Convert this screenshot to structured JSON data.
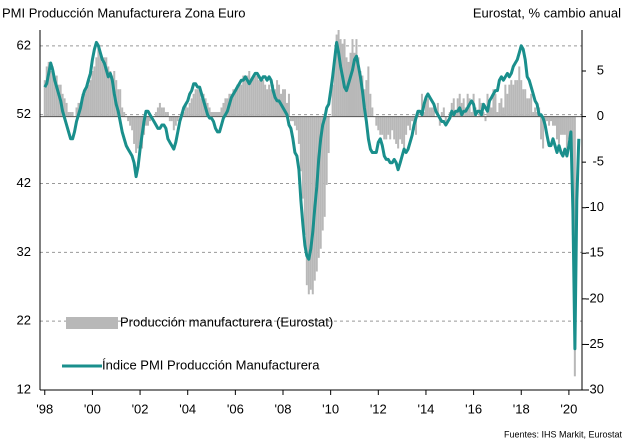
{
  "chart_data": {
    "type": "combo",
    "title": "PMI Producción Manufacturera Zona Euro",
    "y2_label": "Eurostat,  % cambio anual",
    "source": "Fuentes: IHS Markit, Eurostat",
    "xlim": [
      1997.8,
      2020.55
    ],
    "xticks": [
      {
        "value": 1998,
        "label": "'98"
      },
      {
        "value": 2000,
        "label": "'00"
      },
      {
        "value": 2002,
        "label": "'02"
      },
      {
        "value": 2004,
        "label": "'04"
      },
      {
        "value": 2006,
        "label": "'06"
      },
      {
        "value": 2008,
        "label": "'08"
      },
      {
        "value": 2010,
        "label": "'10"
      },
      {
        "value": 2012,
        "label": "'12"
      },
      {
        "value": 2014,
        "label": "'14"
      },
      {
        "value": 2016,
        "label": "'16"
      },
      {
        "value": 2018,
        "label": "'18"
      },
      {
        "value": 2020,
        "label": "'20"
      }
    ],
    "ylim": [
      12,
      64.3
    ],
    "yticks": [
      12,
      22,
      32,
      42,
      52,
      62
    ],
    "y2lim": [
      -30,
      9.5
    ],
    "y2ticks": [
      -30,
      -25,
      -20,
      -15,
      -10,
      -5,
      0,
      5
    ],
    "grid": true,
    "legend": "lower left",
    "x": [
      1998,
      1998.083,
      1998.167,
      1998.25,
      1998.333,
      1998.417,
      1998.5,
      1998.583,
      1998.667,
      1998.75,
      1998.833,
      1998.917,
      1999,
      1999.083,
      1999.167,
      1999.25,
      1999.333,
      1999.417,
      1999.5,
      1999.583,
      1999.667,
      1999.75,
      1999.833,
      1999.917,
      2000,
      2000.083,
      2000.167,
      2000.25,
      2000.333,
      2000.417,
      2000.5,
      2000.583,
      2000.667,
      2000.75,
      2000.833,
      2000.917,
      2001,
      2001.083,
      2001.167,
      2001.25,
      2001.333,
      2001.417,
      2001.5,
      2001.583,
      2001.667,
      2001.75,
      2001.833,
      2001.917,
      2002,
      2002.083,
      2002.167,
      2002.25,
      2002.333,
      2002.417,
      2002.5,
      2002.583,
      2002.667,
      2002.75,
      2002.833,
      2002.917,
      2003,
      2003.083,
      2003.167,
      2003.25,
      2003.333,
      2003.417,
      2003.5,
      2003.583,
      2003.667,
      2003.75,
      2003.833,
      2003.917,
      2004,
      2004.083,
      2004.167,
      2004.25,
      2004.333,
      2004.417,
      2004.5,
      2004.583,
      2004.667,
      2004.75,
      2004.833,
      2004.917,
      2005,
      2005.083,
      2005.167,
      2005.25,
      2005.333,
      2005.417,
      2005.5,
      2005.583,
      2005.667,
      2005.75,
      2005.833,
      2005.917,
      2006,
      2006.083,
      2006.167,
      2006.25,
      2006.333,
      2006.417,
      2006.5,
      2006.583,
      2006.667,
      2006.75,
      2006.833,
      2006.917,
      2007,
      2007.083,
      2007.167,
      2007.25,
      2007.333,
      2007.417,
      2007.5,
      2007.583,
      2007.667,
      2007.75,
      2007.833,
      2007.917,
      2008,
      2008.083,
      2008.167,
      2008.25,
      2008.333,
      2008.417,
      2008.5,
      2008.583,
      2008.667,
      2008.75,
      2008.833,
      2008.917,
      2009,
      2009.083,
      2009.167,
      2009.25,
      2009.333,
      2009.417,
      2009.5,
      2009.583,
      2009.667,
      2009.75,
      2009.833,
      2009.917,
      2010,
      2010.083,
      2010.167,
      2010.25,
      2010.333,
      2010.417,
      2010.5,
      2010.583,
      2010.667,
      2010.75,
      2010.833,
      2010.917,
      2011,
      2011.083,
      2011.167,
      2011.25,
      2011.333,
      2011.417,
      2011.5,
      2011.583,
      2011.667,
      2011.75,
      2011.833,
      2011.917,
      2012,
      2012.083,
      2012.167,
      2012.25,
      2012.333,
      2012.417,
      2012.5,
      2012.583,
      2012.667,
      2012.75,
      2012.833,
      2012.917,
      2013,
      2013.083,
      2013.167,
      2013.25,
      2013.333,
      2013.417,
      2013.5,
      2013.583,
      2013.667,
      2013.75,
      2013.833,
      2013.917,
      2014,
      2014.083,
      2014.167,
      2014.25,
      2014.333,
      2014.417,
      2014.5,
      2014.583,
      2014.667,
      2014.75,
      2014.833,
      2014.917,
      2015,
      2015.083,
      2015.167,
      2015.25,
      2015.333,
      2015.417,
      2015.5,
      2015.583,
      2015.667,
      2015.75,
      2015.833,
      2015.917,
      2016,
      2016.083,
      2016.167,
      2016.25,
      2016.333,
      2016.417,
      2016.5,
      2016.583,
      2016.667,
      2016.75,
      2016.833,
      2016.917,
      2017,
      2017.083,
      2017.167,
      2017.25,
      2017.333,
      2017.417,
      2017.5,
      2017.583,
      2017.667,
      2017.75,
      2017.833,
      2017.917,
      2018,
      2018.083,
      2018.167,
      2018.25,
      2018.333,
      2018.417,
      2018.5,
      2018.583,
      2018.667,
      2018.75,
      2018.833,
      2018.917,
      2019,
      2019.083,
      2019.167,
      2019.25,
      2019.333,
      2019.417,
      2019.5,
      2019.583,
      2019.667,
      2019.75,
      2019.833,
      2019.917,
      2020,
      2020.083,
      2020.167,
      2020.25,
      2020.333,
      2020.417
    ],
    "series": [
      {
        "name": "Producción manufacturera (Eurostat)",
        "type": "bar",
        "axis": "y2",
        "color": "#b8b8b8",
        "values": [
          4.0,
          5.5,
          6.0,
          5.0,
          5.5,
          4.0,
          4.5,
          3.5,
          3.5,
          2.5,
          2.0,
          1.5,
          0.5,
          0.5,
          0.5,
          0.0,
          1.0,
          1.5,
          1.5,
          2.5,
          2.5,
          3.0,
          3.5,
          4.0,
          5.0,
          5.5,
          6.5,
          7.5,
          7.0,
          6.0,
          6.5,
          6.5,
          5.5,
          5.0,
          4.5,
          5.0,
          4.0,
          3.0,
          3.0,
          1.0,
          0.5,
          0.0,
          -0.5,
          -1.0,
          -1.5,
          -3.0,
          -4.0,
          -3.5,
          -3.0,
          -3.5,
          -2.0,
          -1.0,
          -1.0,
          -0.5,
          0.0,
          0.0,
          0.5,
          1.0,
          1.5,
          1.0,
          1.0,
          0.5,
          0.5,
          -0.5,
          -0.5,
          -1.5,
          -1.0,
          -0.5,
          0.0,
          0.5,
          0.5,
          1.5,
          1.0,
          1.5,
          2.0,
          2.5,
          3.0,
          3.0,
          3.0,
          2.0,
          2.5,
          2.0,
          1.5,
          1.0,
          0.5,
          0.5,
          0.5,
          0.5,
          0.5,
          1.0,
          1.5,
          2.0,
          2.0,
          2.5,
          2.5,
          3.0,
          3.0,
          3.5,
          3.5,
          3.5,
          4.5,
          4.0,
          4.5,
          5.0,
          4.0,
          4.5,
          4.5,
          4.5,
          4.0,
          4.0,
          4.0,
          3.5,
          3.0,
          3.5,
          3.0,
          3.5,
          3.0,
          4.0,
          3.5,
          2.5,
          3.0,
          3.0,
          1.5,
          2.5,
          -0.5,
          -0.5,
          -1.0,
          -1.5,
          -3.0,
          -6.0,
          -9.0,
          -13.0,
          -18.5,
          -19.5,
          -19.0,
          -19.5,
          -18.0,
          -17.0,
          -15.5,
          -14.5,
          -12.5,
          -11.0,
          -7.5,
          -4.0,
          0.0,
          3.5,
          6.5,
          9.0,
          9.5,
          8.5,
          8.0,
          8.5,
          6.5,
          6.0,
          7.0,
          8.5,
          7.0,
          8.5,
          6.5,
          5.0,
          4.5,
          3.0,
          4.0,
          5.5,
          2.5,
          1.0,
          0.0,
          -1.0,
          -1.5,
          -2.0,
          -2.0,
          -2.5,
          -2.5,
          -2.0,
          -2.5,
          -1.5,
          -2.5,
          -3.0,
          -3.5,
          -2.5,
          -3.0,
          -3.5,
          -2.0,
          -1.0,
          -1.5,
          -0.5,
          -1.5,
          -2.0,
          0.5,
          0.0,
          2.5,
          0.5,
          2.0,
          2.0,
          1.0,
          1.0,
          1.0,
          0.0,
          1.5,
          -1.0,
          0.5,
          1.0,
          -0.5,
          0.0,
          0.5,
          1.5,
          2.0,
          0.5,
          2.0,
          2.5,
          1.5,
          2.0,
          1.0,
          2.5,
          2.0,
          0.5,
          2.5,
          1.0,
          0.0,
          2.0,
          1.5,
          0.5,
          -0.5,
          2.5,
          1.5,
          1.0,
          3.0,
          2.5,
          0.5,
          1.5,
          2.0,
          1.0,
          3.5,
          2.5,
          3.5,
          4.0,
          3.5,
          4.0,
          4.0,
          5.5,
          4.0,
          3.0,
          3.0,
          2.0,
          2.0,
          2.5,
          0.5,
          1.0,
          0.5,
          1.0,
          -2.5,
          -3.5,
          -1.0,
          -0.5,
          -1.0,
          -0.5,
          -1.0,
          -1.0,
          -2.5,
          -3.0,
          -2.0,
          -2.0,
          -2.0,
          -3.5,
          -2.5,
          -2.0,
          -13.0,
          -28.5,
          null,
          null
        ]
      },
      {
        "name": "Índice PMI Producción Manufacturera",
        "type": "line",
        "color": "#1a8f8c",
        "values": [
          56.0,
          56.5,
          58.0,
          59.5,
          58.5,
          57.0,
          56.0,
          55.0,
          54.0,
          52.5,
          51.5,
          50.5,
          49.5,
          48.5,
          48.5,
          49.5,
          51.0,
          52.0,
          53.0,
          54.5,
          55.5,
          56.0,
          57.0,
          58.0,
          60.0,
          61.5,
          62.5,
          62.0,
          61.0,
          60.0,
          59.5,
          58.5,
          57.5,
          58.0,
          57.0,
          55.0,
          53.5,
          52.5,
          51.0,
          49.5,
          48.5,
          47.5,
          47.0,
          46.5,
          46.0,
          45.0,
          43.0,
          44.5,
          47.0,
          49.0,
          51.0,
          52.5,
          52.5,
          52.0,
          51.5,
          51.0,
          50.5,
          50.0,
          50.0,
          50.5,
          50.5,
          50.0,
          48.5,
          48.0,
          47.5,
          47.0,
          48.0,
          49.5,
          51.0,
          52.0,
          53.0,
          53.5,
          54.0,
          55.0,
          55.5,
          56.5,
          56.5,
          56.0,
          56.0,
          55.0,
          54.0,
          53.0,
          52.0,
          51.5,
          51.5,
          51.0,
          50.0,
          49.5,
          49.5,
          50.5,
          51.5,
          52.0,
          52.5,
          53.5,
          54.5,
          55.0,
          55.5,
          56.0,
          56.5,
          57.0,
          57.0,
          57.5,
          57.0,
          56.5,
          57.0,
          57.5,
          58.0,
          58.0,
          57.5,
          57.0,
          57.5,
          57.5,
          57.0,
          57.5,
          57.0,
          55.5,
          54.5,
          54.0,
          54.0,
          53.5,
          53.0,
          52.5,
          52.0,
          50.5,
          50.0,
          48.5,
          46.5,
          46.0,
          44.0,
          39.5,
          36.0,
          33.0,
          31.5,
          31.0,
          32.5,
          35.0,
          38.5,
          41.5,
          45.5,
          48.5,
          50.5,
          51.5,
          53.0,
          53.5,
          55.5,
          57.5,
          60.0,
          62.5,
          61.0,
          59.0,
          57.5,
          56.0,
          55.5,
          56.5,
          57.5,
          58.5,
          60.0,
          60.5,
          59.0,
          57.5,
          55.5,
          53.0,
          51.0,
          48.5,
          47.0,
          46.5,
          46.5,
          46.5,
          48.0,
          48.5,
          47.5,
          46.0,
          45.5,
          45.5,
          45.0,
          45.0,
          45.5,
          45.0,
          44.0,
          45.0,
          46.0,
          47.0,
          46.5,
          47.0,
          48.0,
          49.0,
          50.5,
          51.5,
          52.5,
          52.5,
          52.0,
          53.5,
          54.5,
          55.0,
          54.5,
          54.0,
          53.5,
          52.5,
          52.0,
          51.5,
          51.0,
          51.0,
          50.5,
          51.0,
          51.5,
          52.5,
          52.0,
          52.5,
          52.5,
          53.0,
          52.0,
          52.5,
          52.5,
          53.0,
          53.5,
          54.0,
          53.5,
          52.0,
          52.5,
          52.5,
          52.0,
          53.5,
          53.0,
          52.5,
          54.0,
          54.5,
          55.0,
          55.5,
          55.5,
          57.0,
          57.5,
          57.0,
          57.5,
          58.0,
          57.5,
          58.0,
          59.0,
          59.5,
          60.0,
          61.0,
          62.0,
          61.5,
          60.0,
          57.5,
          57.0,
          56.0,
          55.0,
          54.0,
          53.5,
          52.0,
          52.0,
          51.5,
          50.5,
          49.0,
          47.5,
          47.5,
          48.5,
          47.5,
          46.5,
          47.5,
          46.5,
          46.0,
          47.0,
          46.0,
          47.5,
          49.5,
          38.0,
          18.0,
          39.5,
          48.5
        ]
      }
    ]
  }
}
